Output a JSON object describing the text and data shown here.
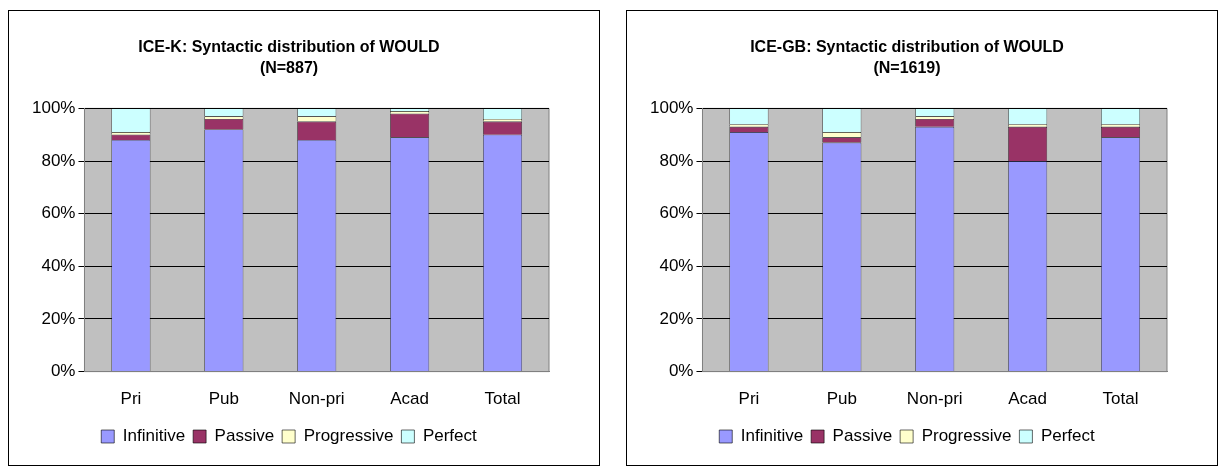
{
  "chart_data": [
    {
      "type": "bar",
      "title": "ICE-K: Syntactic distribution of WOULD",
      "subtitle": "(N=887)",
      "stacked": true,
      "categories": [
        "Pri",
        "Pub",
        "Non-pri",
        "Acad",
        "Total"
      ],
      "series": [
        {
          "name": "Infinitive",
          "color": "#9999ff",
          "values": [
            88,
            92,
            88,
            89,
            90
          ]
        },
        {
          "name": "Passive",
          "color": "#993366",
          "values": [
            2,
            4,
            7,
            9,
            5
          ]
        },
        {
          "name": "Progressive",
          "color": "#ffffcc",
          "values": [
            1,
            1,
            2,
            1,
            1
          ]
        },
        {
          "name": "Perfect",
          "color": "#ccffff",
          "values": [
            9,
            3,
            3,
            1,
            4
          ]
        }
      ],
      "ylim": [
        0,
        100
      ],
      "yticks": [
        {
          "value": 0,
          "label": "0%"
        },
        {
          "value": 20,
          "label": "20%"
        },
        {
          "value": 40,
          "label": "40%"
        },
        {
          "value": 60,
          "label": "60%"
        },
        {
          "value": 80,
          "label": "80%"
        },
        {
          "value": 100,
          "label": "100%"
        }
      ],
      "grid": "y",
      "legend": "bottom"
    },
    {
      "type": "bar",
      "title": "ICE-GB: Syntactic distribution of WOULD",
      "subtitle": "(N=1619)",
      "stacked": true,
      "categories": [
        "Pri",
        "Pub",
        "Non-pri",
        "Acad",
        "Total"
      ],
      "series": [
        {
          "name": "Infinitive",
          "color": "#9999ff",
          "values": [
            91,
            87,
            93,
            80,
            89
          ]
        },
        {
          "name": "Passive",
          "color": "#993366",
          "values": [
            2,
            2,
            3,
            13,
            4
          ]
        },
        {
          "name": "Progressive",
          "color": "#ffffcc",
          "values": [
            1,
            2,
            1,
            1,
            1
          ]
        },
        {
          "name": "Perfect",
          "color": "#ccffff",
          "values": [
            6,
            9,
            3,
            6,
            6
          ]
        }
      ],
      "ylim": [
        0,
        100
      ],
      "yticks": [
        {
          "value": 0,
          "label": "0%"
        },
        {
          "value": 20,
          "label": "20%"
        },
        {
          "value": 40,
          "label": "40%"
        },
        {
          "value": 60,
          "label": "60%"
        },
        {
          "value": 80,
          "label": "80%"
        },
        {
          "value": 100,
          "label": "100%"
        }
      ],
      "grid": "y",
      "legend": "bottom"
    }
  ]
}
